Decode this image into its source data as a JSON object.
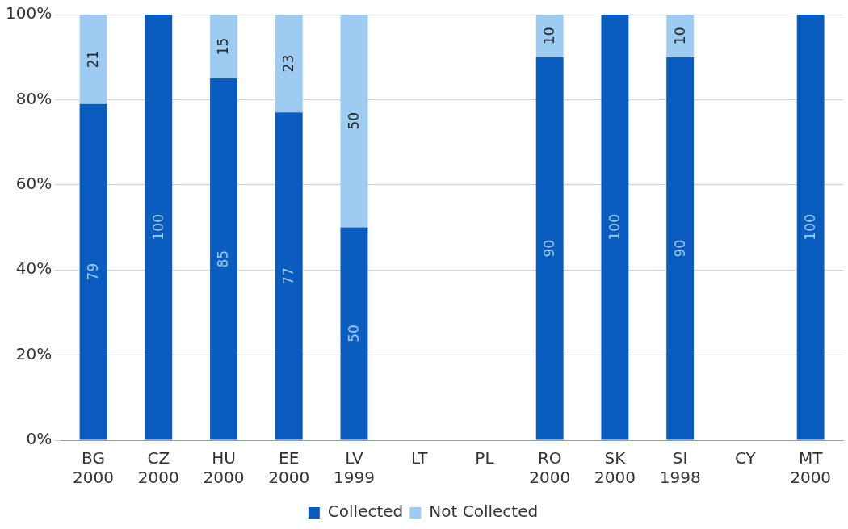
{
  "chart_data": {
    "type": "bar",
    "stacked": true,
    "categories": [
      "BG\n2000",
      "CZ\n2000",
      "HU\n2000",
      "EE\n2000",
      "LV\n1999",
      "LT",
      "PL",
      "RO\n2000",
      "SK\n2000",
      "SI\n1998",
      "CY",
      "MT\n2000"
    ],
    "series": [
      {
        "name": "Collected",
        "color": "#0a5cbf",
        "values": [
          79,
          100,
          85,
          77,
          50,
          null,
          null,
          90,
          100,
          90,
          null,
          100
        ]
      },
      {
        "name": "Not Collected",
        "color": "#9ecbf2",
        "values": [
          21,
          null,
          15,
          23,
          50,
          null,
          null,
          10,
          null,
          10,
          null,
          null
        ]
      }
    ],
    "ylim": [
      0,
      100
    ],
    "yticks": [
      {
        "value": 0,
        "label": "0%"
      },
      {
        "value": 20,
        "label": "20%"
      },
      {
        "value": 40,
        "label": "40%"
      },
      {
        "value": 60,
        "label": "60%"
      },
      {
        "value": 80,
        "label": "80%"
      },
      {
        "value": 100,
        "label": "100%"
      }
    ],
    "grid": "y",
    "legend": "bottom",
    "data_labels": true
  }
}
